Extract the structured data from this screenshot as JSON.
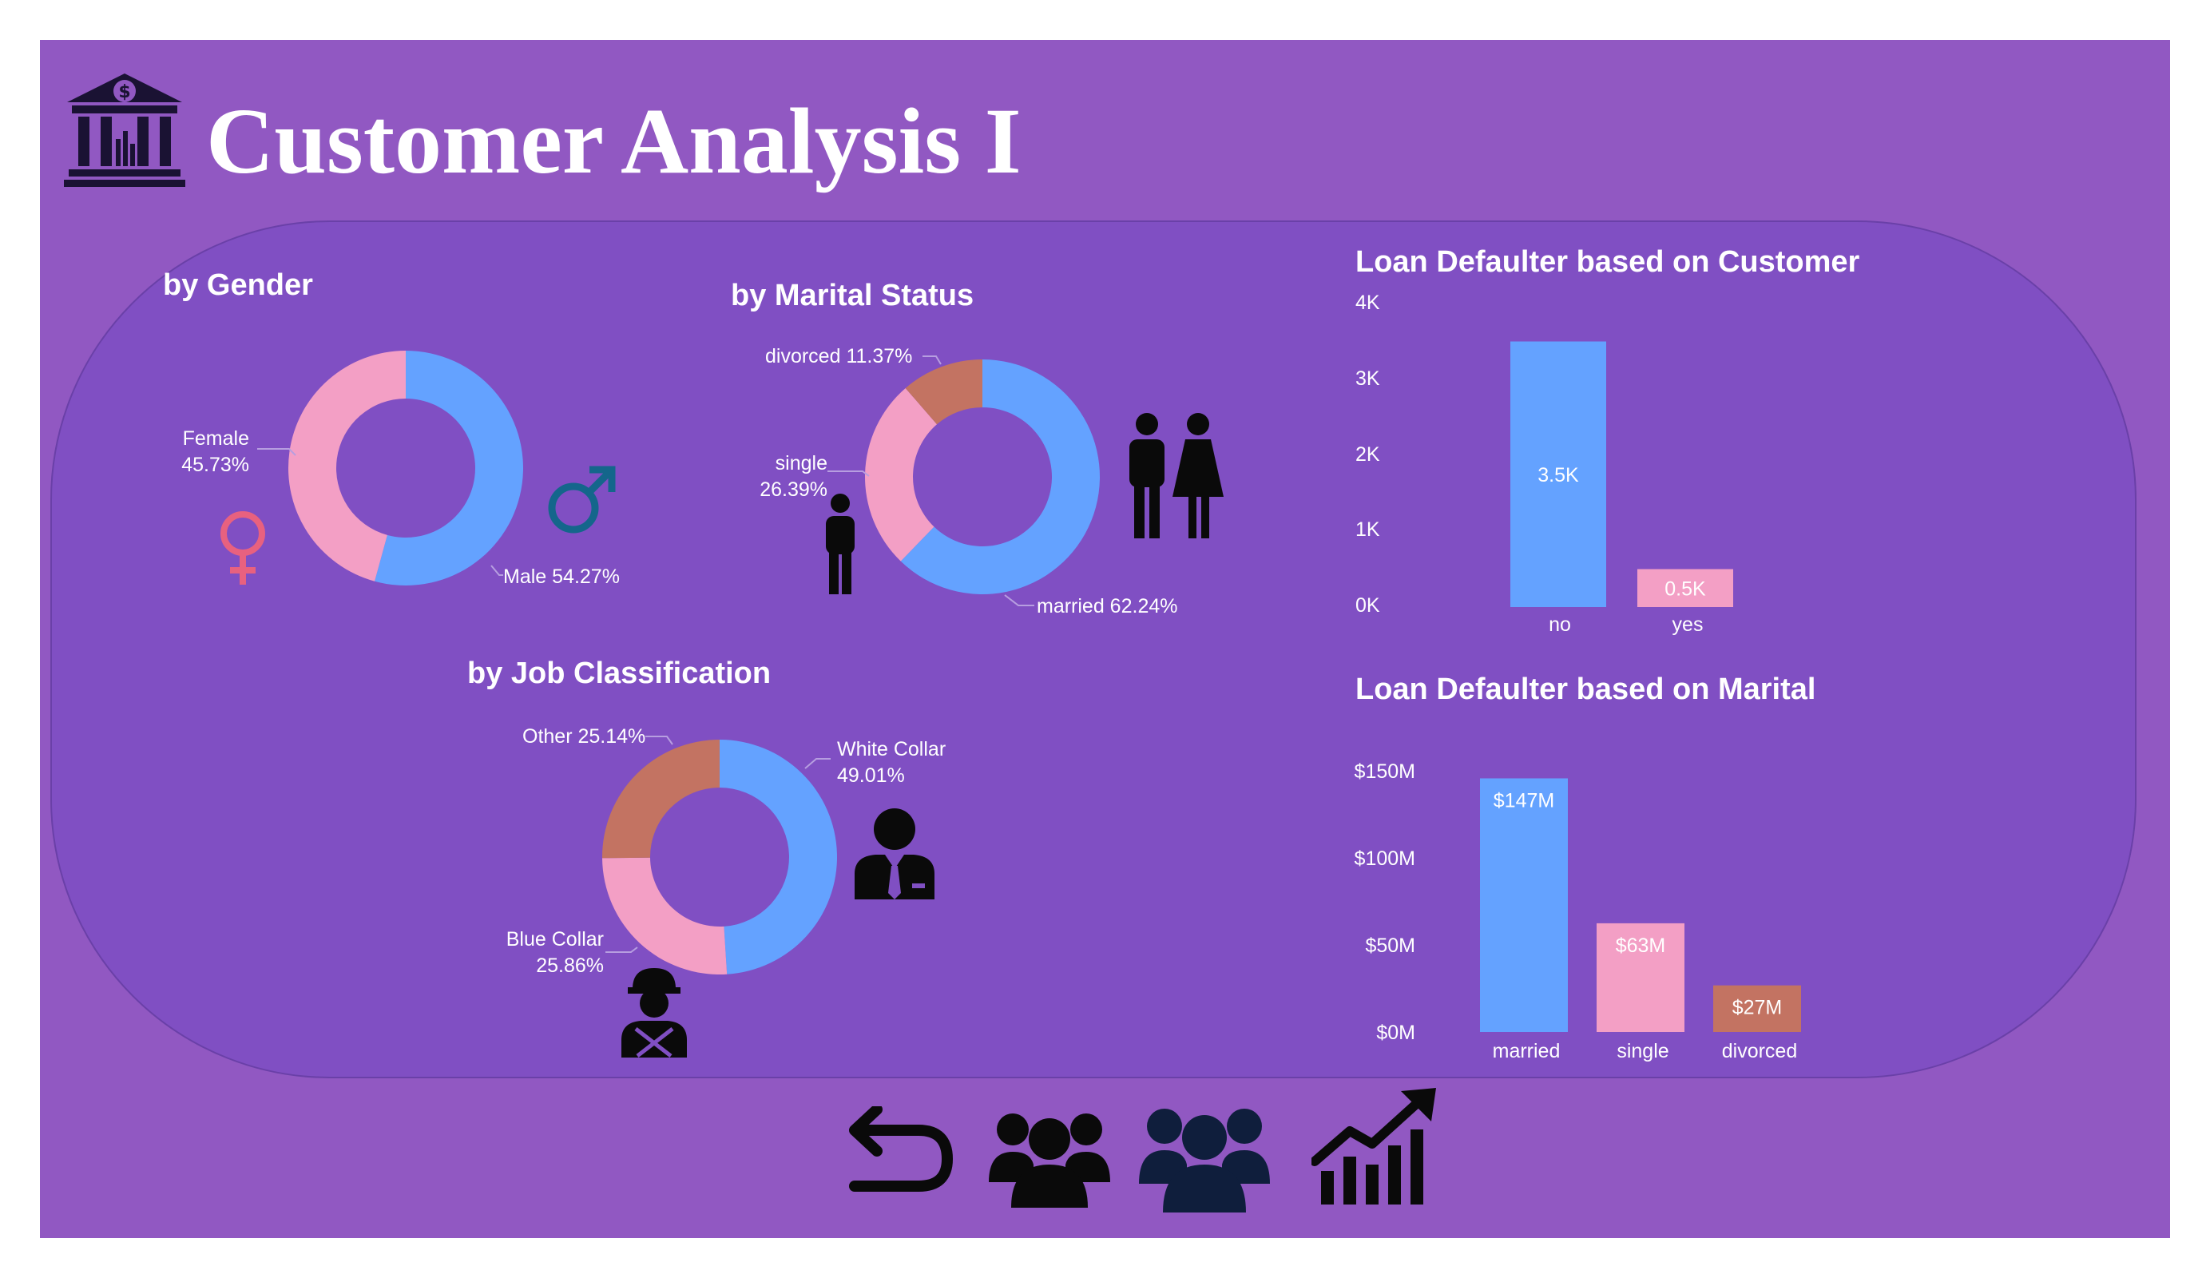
{
  "page": {
    "title": "Customer Analysis I"
  },
  "colors": {
    "frame": "#9158c2",
    "panel": "#804fc3",
    "blue": "#64a2ff",
    "pink": "#f39fc5",
    "brown": "#c37362",
    "female_symbol": "#e8617f",
    "male_symbol": "#14668b",
    "icon_dark": "#0a0a0a",
    "icon_navy": "#0f1e3c"
  },
  "gender": {
    "title": "by Gender",
    "labels": {
      "female_name": "Female",
      "female_pct": "45.73%",
      "male": "Male 54.27%"
    },
    "icons": [
      "female-symbol-icon",
      "male-symbol-icon"
    ]
  },
  "marital": {
    "title": "by Marital Status",
    "labels": {
      "divorced": "divorced 11.37%",
      "single_name": "single",
      "single_pct": "26.39%",
      "married": "married 62.24%"
    },
    "icons": [
      "single-person-icon",
      "couple-icon"
    ]
  },
  "job": {
    "title": "by Job Classification",
    "labels": {
      "other": "Other 25.14%",
      "white_name": "White Collar",
      "white_pct": "49.01%",
      "blue_name": "Blue Collar",
      "blue_pct": "25.86%"
    },
    "icons": [
      "businessman-icon",
      "worker-icon"
    ]
  },
  "default_customer": {
    "title": "Loan Defaulter based on Customer",
    "y_ticks": [
      "4K",
      "3K",
      "2K",
      "1K",
      "0K"
    ],
    "bars": [
      {
        "label": "no",
        "value_label": "3.5K"
      },
      {
        "label": "yes",
        "value_label": "0.5K"
      }
    ]
  },
  "default_marital": {
    "title": "Loan Defaulter based on Marital",
    "y_ticks": [
      "$150M",
      "$100M",
      "$50M",
      "$0M"
    ],
    "bars": [
      {
        "label": "married",
        "value_label": "$147M"
      },
      {
        "label": "single",
        "value_label": "$63M"
      },
      {
        "label": "divorced",
        "value_label": "$27M"
      }
    ]
  },
  "nav": {
    "icons": [
      "back-arrow-icon",
      "customers-group-icon",
      "customers-group-active-icon",
      "growth-chart-icon"
    ]
  },
  "chart_data": [
    {
      "type": "pie",
      "title": "by Gender",
      "categories": [
        "Male",
        "Female"
      ],
      "values": [
        54.27,
        45.73
      ],
      "colors": [
        "#64a2ff",
        "#f39fc5"
      ]
    },
    {
      "type": "pie",
      "title": "by Marital Status",
      "categories": [
        "married",
        "single",
        "divorced"
      ],
      "values": [
        62.24,
        26.39,
        11.37
      ],
      "colors": [
        "#64a2ff",
        "#f39fc5",
        "#c37362"
      ]
    },
    {
      "type": "pie",
      "title": "by Job Classification",
      "categories": [
        "White Collar",
        "Blue Collar",
        "Other"
      ],
      "values": [
        49.01,
        25.86,
        25.14
      ],
      "colors": [
        "#64a2ff",
        "#f39fc5",
        "#c37362"
      ]
    },
    {
      "type": "bar",
      "title": "Loan Defaulter based on Customer",
      "categories": [
        "no",
        "yes"
      ],
      "values": [
        3500,
        500
      ],
      "ylim": [
        0,
        4000
      ],
      "colors": [
        "#64a2ff",
        "#f39fc5"
      ]
    },
    {
      "type": "bar",
      "title": "Loan Defaulter based on Marital",
      "categories": [
        "married",
        "single",
        "divorced"
      ],
      "values": [
        147,
        63,
        27
      ],
      "ylim": [
        0,
        150
      ],
      "colors": [
        "#64a2ff",
        "#f39fc5",
        "#c37362"
      ]
    }
  ]
}
